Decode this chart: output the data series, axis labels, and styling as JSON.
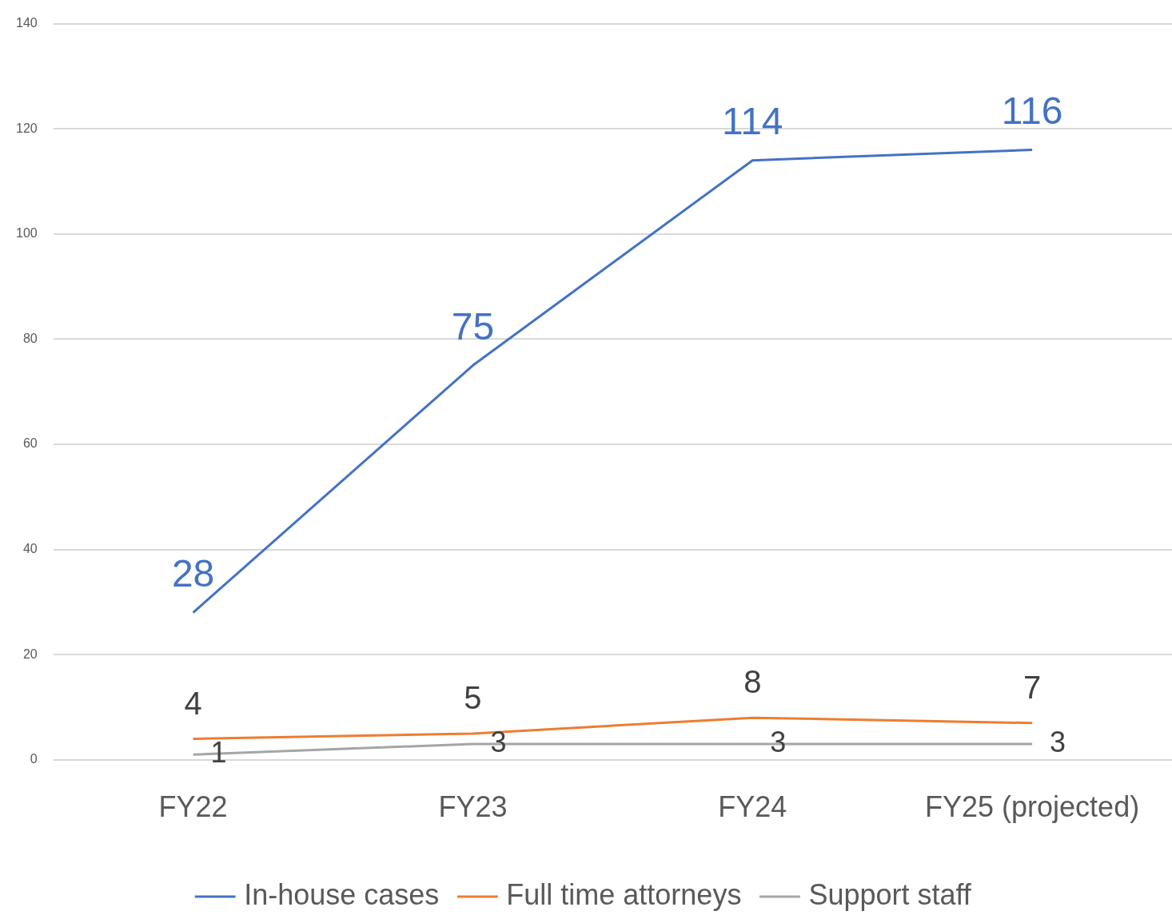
{
  "chart_data": {
    "type": "line",
    "categories": [
      "FY22",
      "FY23",
      "FY24",
      "FY25 (projected)"
    ],
    "series": [
      {
        "name": "In-house cases",
        "color": "#4472c4",
        "values": [
          28,
          75,
          114,
          116
        ]
      },
      {
        "name": "Full time attorneys",
        "color": "#ed7d31",
        "values": [
          4,
          5,
          8,
          7
        ]
      },
      {
        "name": "Support staff",
        "color": "#a5a5a5",
        "values": [
          1,
          3,
          3,
          3
        ]
      }
    ],
    "ylim": [
      0,
      140
    ],
    "yticks": [
      0,
      20,
      40,
      60,
      80,
      100,
      120,
      140
    ],
    "grid": "y",
    "legend": "bottom",
    "marker": "none",
    "line_style": "solid",
    "data_labels": true
  }
}
